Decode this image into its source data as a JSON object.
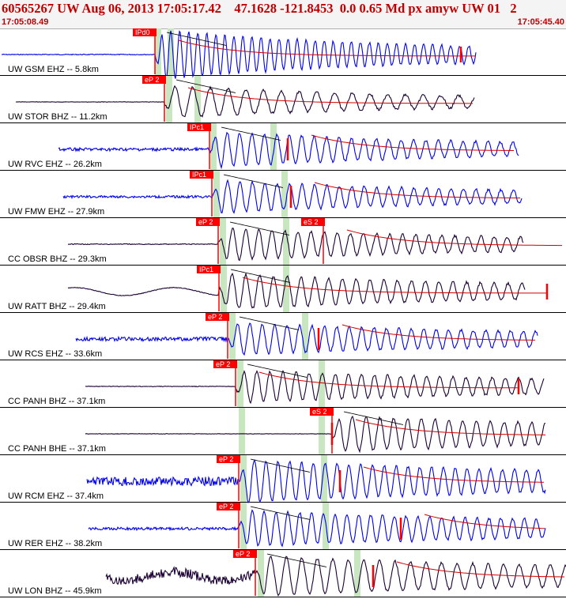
{
  "header": {
    "title": "60565267 UW Aug 06, 2013 17:05:17.42    47.1628 -121.8453  0.0 0.65 Md px amyw UW 01   2",
    "time_start": "17:05:08.49",
    "time_end": "17:05:45.40"
  },
  "colors": {
    "trace_blue": "#0000ee",
    "trace_dark": "#1a0033",
    "pick": "#ff0000",
    "window": "#c8e6c0",
    "coda": "#d40000"
  },
  "channels": [
    {
      "label": "UW GSM EHZ -- 5.8km",
      "color": "blue",
      "pick_labels": [
        "IPd0"
      ]
    },
    {
      "label": "UW STOR BHZ -- 11.2km",
      "color": "dark",
      "pick_labels": [
        "eP 2"
      ]
    },
    {
      "label": "UW RVC EHZ -- 26.2km",
      "color": "blue",
      "pick_labels": [
        "IPc1"
      ]
    },
    {
      "label": "UW FMW EHZ -- 27.9km",
      "color": "blue",
      "pick_labels": [
        "IPc1"
      ]
    },
    {
      "label": "CC OBSR BHZ -- 29.3km",
      "color": "dark",
      "pick_labels": [
        "eP 2",
        "eS 2"
      ]
    },
    {
      "label": "UW RATT BHZ -- 29.4km",
      "color": "dark",
      "pick_labels": [
        "IPc1"
      ]
    },
    {
      "label": "UW RCS EHZ -- 33.6km",
      "color": "blue",
      "pick_labels": [
        "eP 2"
      ]
    },
    {
      "label": "CC PANH BHZ -- 37.1km",
      "color": "dark",
      "pick_labels": [
        "eP 2"
      ]
    },
    {
      "label": "CC PANH BHE -- 37.1km",
      "color": "dark",
      "pick_labels": [
        "eS 2"
      ]
    },
    {
      "label": "UW RCM EHZ -- 37.4km",
      "color": "blue",
      "pick_labels": [
        "eP 2"
      ]
    },
    {
      "label": "UW RER EHZ -- 38.2km",
      "color": "blue",
      "pick_labels": [
        "eP 2"
      ]
    },
    {
      "label": "UW LON BHZ -- 45.9km",
      "color": "dark",
      "pick_labels": [
        "eP 2"
      ]
    }
  ]
}
